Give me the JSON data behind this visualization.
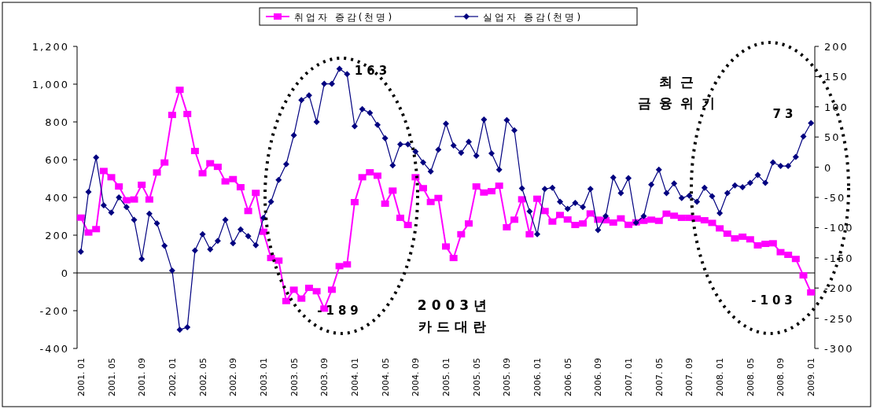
{
  "chart_data": {
    "type": "line",
    "categories": [
      "2001. 01",
      null,
      null,
      null,
      "2001. 05",
      null,
      null,
      null,
      "2001. 09",
      null,
      null,
      null,
      "2002. 01",
      null,
      null,
      null,
      "2002. 05",
      null,
      null,
      null,
      "2002. 09",
      null,
      null,
      null,
      "2003. 01",
      null,
      null,
      null,
      "2003. 05",
      null,
      null,
      null,
      "2003. 09",
      null,
      null,
      null,
      "2004. 01",
      null,
      null,
      null,
      "2004. 05",
      null,
      null,
      null,
      "2004. 09",
      null,
      null,
      null,
      "2005. 01",
      null,
      null,
      null,
      "2005. 05",
      null,
      null,
      null,
      "2005. 09",
      null,
      null,
      null,
      "2006. 01",
      null,
      null,
      null,
      "2006. 05",
      null,
      null,
      null,
      "2006. 09",
      null,
      null,
      null,
      "2007. 01",
      null,
      null,
      null,
      "2007. 05",
      null,
      null,
      null,
      "2007. 09",
      null,
      null,
      null,
      "2008. 01",
      null,
      null,
      null,
      "2008. 05",
      null,
      null,
      null,
      "2008. 09",
      null,
      null,
      null,
      "2009. 01"
    ],
    "series": [
      {
        "name": "취업자 증감(천명)",
        "color": "#ff00ff",
        "marker": "square",
        "values": [
          293,
          214,
          232,
          540,
          507,
          458,
          385,
          389,
          467,
          389,
          532,
          585,
          837,
          970,
          842,
          646,
          528,
          581,
          562,
          485,
          497,
          454,
          328,
          424,
          218,
          79,
          65,
          -149,
          -89,
          -136,
          -79,
          -97,
          -189,
          -89,
          36,
          45,
          375,
          507,
          533,
          515,
          367,
          436,
          292,
          254,
          507,
          449,
          376,
          397,
          140,
          79,
          205,
          262,
          458,
          426,
          433,
          462,
          242,
          282,
          390,
          205,
          393,
          328,
          272,
          307,
          283,
          254,
          262,
          315,
          282,
          279,
          267,
          289,
          255,
          268,
          276,
          282,
          276,
          314,
          303,
          292,
          292,
          288,
          279,
          265,
          236,
          208,
          183,
          192,
          178,
          146,
          154,
          157,
          110,
          96,
          74,
          -13,
          -103
        ]
      },
      {
        "name": "실업자 증감(천명)",
        "color": "#000080",
        "marker": "diamond",
        "axis": "y2",
        "values": [
          -140,
          -41,
          16,
          -63,
          -75,
          -50,
          -66,
          -87,
          -152,
          -77,
          -93,
          -130,
          -171,
          -269,
          -265,
          -138,
          -111,
          -136,
          -122,
          -87,
          -126,
          -103,
          -114,
          -129,
          -84,
          -57,
          -21,
          5,
          53,
          111,
          119,
          75,
          138,
          138,
          163,
          154,
          68,
          96,
          90,
          70,
          48,
          3,
          38,
          38,
          26,
          8,
          -7,
          29,
          72,
          36,
          24,
          42,
          19,
          79,
          23,
          -4,
          78,
          61,
          -35,
          -73,
          -111,
          -36,
          -34,
          -57,
          -69,
          -59,
          -66,
          -36,
          -104,
          -81,
          -17,
          -43,
          -18,
          -92,
          -81,
          -29,
          -4,
          -43,
          -27,
          -51,
          -47,
          -57,
          -34,
          -48,
          -76,
          -43,
          -30,
          -33,
          -26,
          -13,
          -26,
          8,
          2,
          2,
          17,
          51,
          73
        ]
      }
    ],
    "ylim": [
      -400,
      1200
    ],
    "yticks": [
      -400,
      -200,
      0,
      200,
      400,
      600,
      800,
      {
        "value": 1000,
        "label": "1,000"
      },
      {
        "value": 1200,
        "label": "1,200"
      }
    ],
    "y2lim": [
      -300,
      200
    ],
    "y2ticks": [
      -300,
      -250,
      -200,
      -150,
      -100,
      -50,
      0,
      50,
      100,
      150,
      200
    ],
    "ref_lines": [
      {
        "axis": "y",
        "value": 0,
        "color": "#000000"
      }
    ],
    "annotations": [
      "163",
      "-189",
      "2003년\n카드대란",
      "최근\n금융위기",
      "73",
      "-103"
    ],
    "legend": "top",
    "grid": false
  }
}
